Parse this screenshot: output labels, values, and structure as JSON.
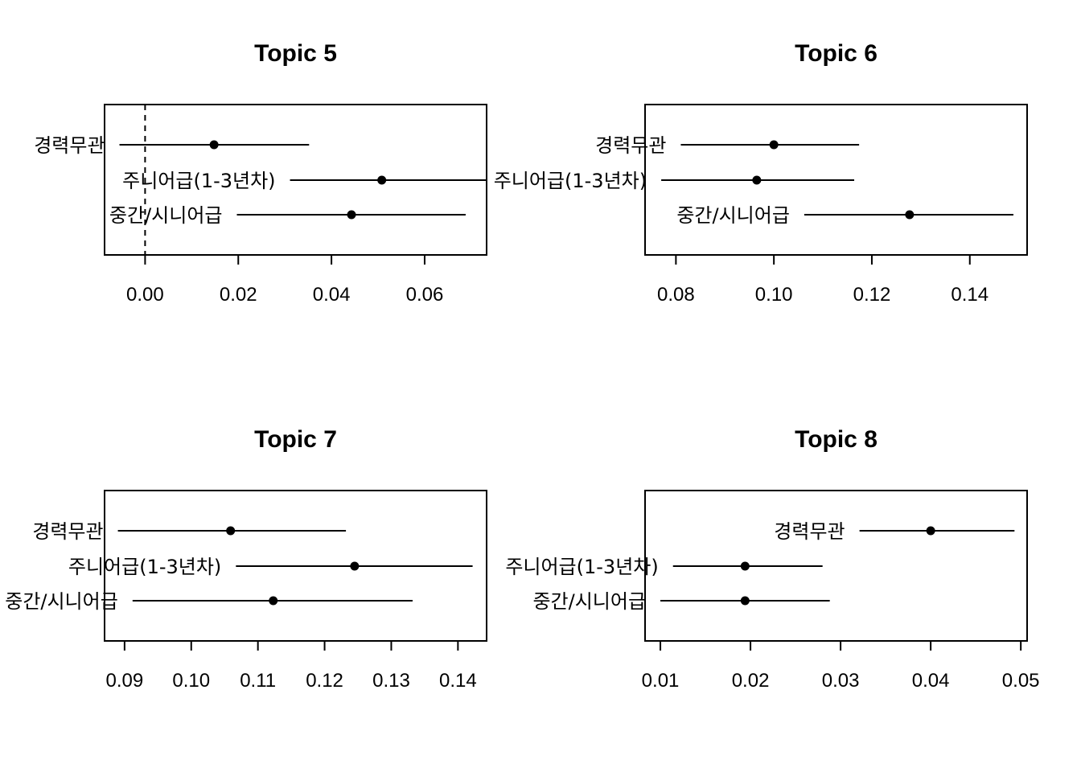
{
  "chart_data": [
    {
      "type": "scatter",
      "title": "Topic 5",
      "xlim": [
        -0.0087,
        0.0733
      ],
      "ticks": [
        0.0,
        0.02,
        0.04,
        0.06
      ],
      "tick_labels": [
        "0.00",
        "0.02",
        "0.04",
        "0.06"
      ],
      "zero_line": true,
      "points": [
        {
          "label": "경력무관",
          "estimate": 0.0148,
          "lower": -0.0055,
          "upper": 0.0352
        },
        {
          "label": "주니어급(1-3년차)",
          "estimate": 0.0508,
          "lower": 0.0311,
          "upper": 0.0733
        },
        {
          "label": "중간/시니어급",
          "estimate": 0.0443,
          "lower": 0.0197,
          "upper": 0.0688
        }
      ]
    },
    {
      "type": "scatter",
      "title": "Topic 6",
      "xlim": [
        0.0737,
        0.1517
      ],
      "ticks": [
        0.08,
        0.1,
        0.12,
        0.14
      ],
      "tick_labels": [
        "0.08",
        "0.10",
        "0.12",
        "0.14"
      ],
      "zero_line": false,
      "points": [
        {
          "label": "경력무관",
          "estimate": 0.1,
          "lower": 0.081,
          "upper": 0.1174
        },
        {
          "label": "주니어급(1-3년차)",
          "estimate": 0.0965,
          "lower": 0.077,
          "upper": 0.1164
        },
        {
          "label": "중간/시니어급",
          "estimate": 0.1277,
          "lower": 0.1062,
          "upper": 0.1489
        }
      ]
    },
    {
      "type": "scatter",
      "title": "Topic 7",
      "xlim": [
        0.087,
        0.1443
      ],
      "ticks": [
        0.09,
        0.1,
        0.11,
        0.12,
        0.13,
        0.14
      ],
      "tick_labels": [
        "0.09",
        "0.10",
        "0.11",
        "0.12",
        "0.13",
        "0.14"
      ],
      "zero_line": false,
      "points": [
        {
          "label": "경력무관",
          "estimate": 0.1059,
          "lower": 0.089,
          "upper": 0.1232
        },
        {
          "label": "주니어급(1-3년차)",
          "estimate": 0.1245,
          "lower": 0.1067,
          "upper": 0.1422
        },
        {
          "label": "중간/시니어급",
          "estimate": 0.1123,
          "lower": 0.0912,
          "upper": 0.1332
        }
      ]
    },
    {
      "type": "scatter",
      "title": "Topic 8",
      "xlim": [
        0.0083,
        0.0507
      ],
      "ticks": [
        0.01,
        0.02,
        0.03,
        0.04,
        0.05
      ],
      "tick_labels": [
        "0.01",
        "0.02",
        "0.03",
        "0.04",
        "0.05"
      ],
      "zero_line": false,
      "points": [
        {
          "label": "경력무관",
          "estimate": 0.04,
          "lower": 0.0321,
          "upper": 0.0493
        },
        {
          "label": "주니어급(1-3년차)",
          "estimate": 0.0194,
          "lower": 0.0114,
          "upper": 0.028
        },
        {
          "label": "중간/시니어급",
          "estimate": 0.0194,
          "lower": 0.01,
          "upper": 0.0288
        }
      ]
    }
  ]
}
